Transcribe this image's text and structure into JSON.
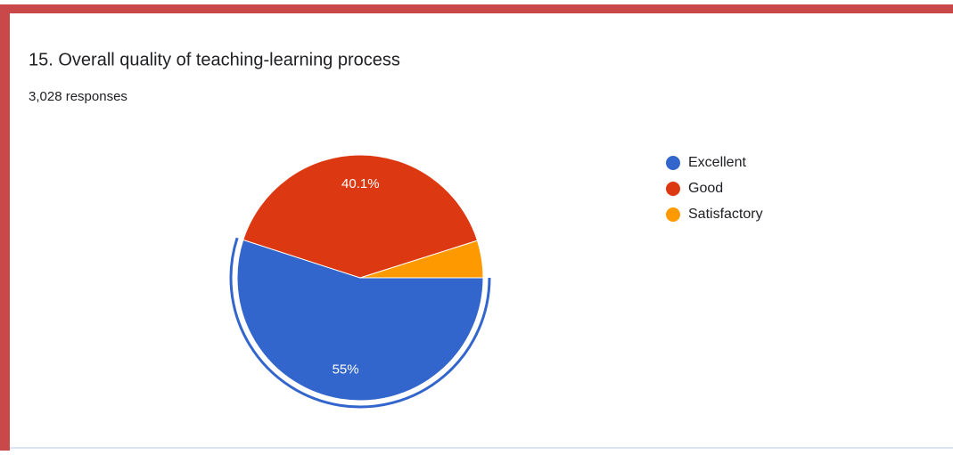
{
  "chart_data": {
    "type": "pie",
    "title": "15. Overall quality of teaching-learning process",
    "subtitle": "3,028 responses",
    "categories": [
      "Excellent",
      "Good",
      "Satisfactory"
    ],
    "values": [
      55,
      40.1,
      4.9
    ],
    "value_labels": [
      "55%",
      "40.1%",
      null
    ],
    "colors": [
      "#3366cc",
      "#dc3912",
      "#ff9900"
    ],
    "legend": "right"
  }
}
